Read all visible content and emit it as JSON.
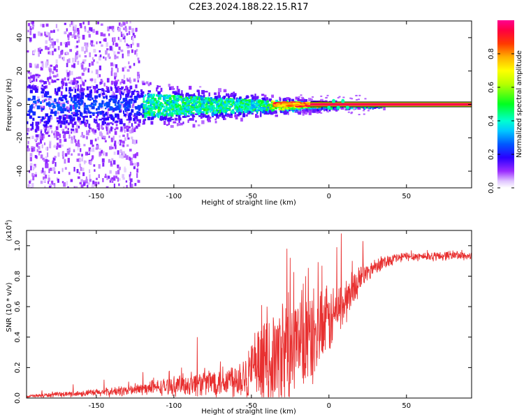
{
  "title": "C2E3.2024.188.22.15.R17",
  "chart_data": [
    {
      "type": "heatmap",
      "xlabel": "Height of straight line (km)",
      "ylabel": "Frequency (Hz)",
      "xlim": [
        -195,
        92
      ],
      "ylim": [
        -50,
        50
      ],
      "xticks": [
        "-150",
        "-100",
        "-50",
        "0",
        "50"
      ],
      "xtick_values": [
        -150,
        -100,
        -50,
        0,
        50
      ],
      "yticks": [
        "-40",
        "-20",
        "0",
        "20",
        "40"
      ],
      "ytick_values": [
        -40,
        -20,
        0,
        20,
        40
      ],
      "colorbar": {
        "label": "Normalized spectral amplitude",
        "ticks": [
          "0.0",
          "0.2",
          "0.4",
          "0.6",
          "0.8"
        ],
        "tick_values": [
          0.0,
          0.2,
          0.4,
          0.6,
          0.8
        ],
        "range": [
          0,
          1
        ]
      },
      "grid": false
    },
    {
      "type": "line",
      "xlabel": "Height of straight line (km)",
      "ylabel": "SNR (10 * v/v)",
      "scale_label": "(x10",
      "scale_exponent": "4",
      "scale_suffix": ")",
      "xlim": [
        -195,
        92
      ],
      "ylim": [
        0,
        1.1
      ],
      "xticks": [
        "-150",
        "-100",
        "-50",
        "0",
        "50"
      ],
      "xtick_values": [
        -150,
        -100,
        -50,
        0,
        50
      ],
      "yticks": [
        "0.0",
        "0.2",
        "0.4",
        "0.6",
        "0.8",
        "1.0"
      ],
      "ytick_values": [
        0.0,
        0.2,
        0.4,
        0.6,
        0.8,
        1.0
      ],
      "series_color": "#e83030",
      "trend": {
        "x": [
          -195,
          -180,
          -160,
          -140,
          -120,
          -100,
          -80,
          -60,
          -50,
          -40,
          -30,
          -20,
          -10,
          0,
          10,
          20,
          30,
          40,
          50,
          60,
          70,
          80,
          92
        ],
        "y": [
          0.01,
          0.02,
          0.03,
          0.04,
          0.06,
          0.08,
          0.1,
          0.13,
          0.17,
          0.22,
          0.28,
          0.33,
          0.4,
          0.5,
          0.62,
          0.78,
          0.87,
          0.91,
          0.93,
          0.93,
          0.93,
          0.94,
          0.93
        ]
      },
      "noise": {
        "x": [
          -195,
          -180,
          -160,
          -140,
          -120,
          -100,
          -80,
          -60,
          -50,
          -40,
          -30,
          -20,
          -10,
          0,
          10,
          20,
          30,
          40,
          50,
          60,
          70,
          80,
          92
        ],
        "y": [
          0.01,
          0.015,
          0.02,
          0.03,
          0.04,
          0.06,
          0.09,
          0.12,
          0.2,
          0.3,
          0.35,
          0.35,
          0.3,
          0.22,
          0.15,
          0.08,
          0.05,
          0.04,
          0.03,
          0.03,
          0.03,
          0.03,
          0.03
        ]
      },
      "peaks": [
        {
          "x": -185,
          "y": 0.05
        },
        {
          "x": -165,
          "y": 0.09
        },
        {
          "x": -145,
          "y": 0.12
        },
        {
          "x": -120,
          "y": 0.17
        },
        {
          "x": -95,
          "y": 0.2
        },
        {
          "x": -85,
          "y": 0.4
        },
        {
          "x": -70,
          "y": 0.24
        },
        {
          "x": -50,
          "y": 0.34
        },
        {
          "x": -40,
          "y": 0.6
        },
        {
          "x": -30,
          "y": 0.62
        },
        {
          "x": -27,
          "y": 0.98
        },
        {
          "x": -25,
          "y": 0.92
        },
        {
          "x": -15,
          "y": 0.8
        },
        {
          "x": -5,
          "y": 0.7
        },
        {
          "x": 5,
          "y": 0.99
        },
        {
          "x": 8,
          "y": 1.08
        },
        {
          "x": 15,
          "y": 0.9
        },
        {
          "x": 22,
          "y": 1.03
        }
      ],
      "grid": false
    }
  ]
}
